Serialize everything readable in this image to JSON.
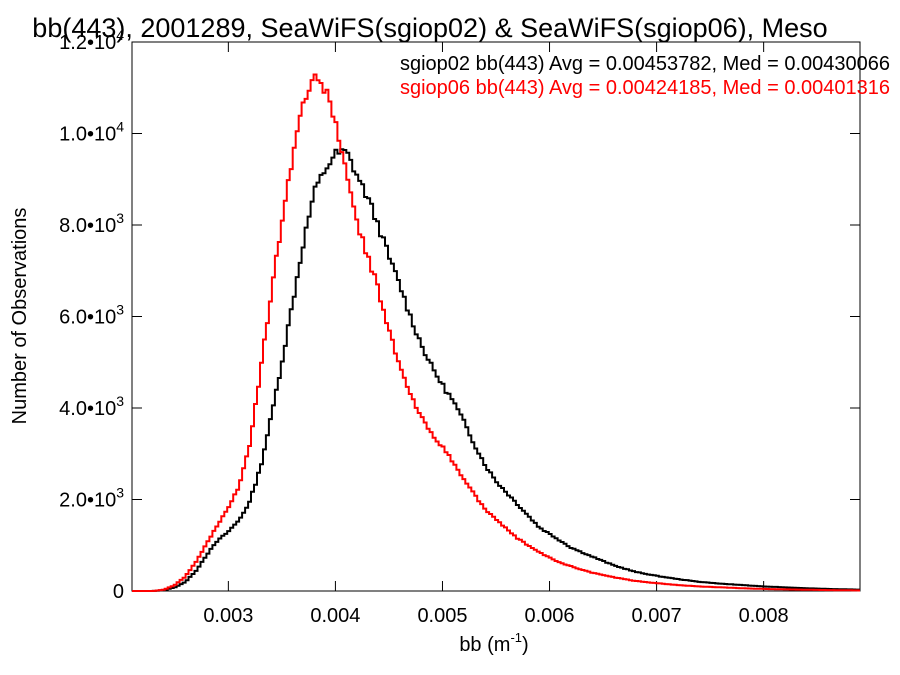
{
  "chart_data": {
    "type": "line",
    "title": "bb(443), 2001289, SeaWiFS(sgiop02) & SeaWiFS(sgiop06), Meso",
    "xlabel": "bb (m",
    "xlabel_sup": "-1",
    "xlabel_close": ")",
    "ylabel": "Number of Observations",
    "xlim": [
      0.0021,
      0.0089
    ],
    "ylim": [
      0,
      12000
    ],
    "x_ticks": [
      {
        "value": 0.003,
        "label": "0.003"
      },
      {
        "value": 0.004,
        "label": "0.004"
      },
      {
        "value": 0.005,
        "label": "0.005"
      },
      {
        "value": 0.006,
        "label": "0.006"
      },
      {
        "value": 0.007,
        "label": "0.007"
      },
      {
        "value": 0.008,
        "label": "0.008"
      }
    ],
    "y_ticks": [
      {
        "value": 0,
        "mant": "0",
        "exp": ""
      },
      {
        "value": 2000,
        "mant": "2.0•10",
        "exp": "3"
      },
      {
        "value": 4000,
        "mant": "4.0•10",
        "exp": "3"
      },
      {
        "value": 6000,
        "mant": "6.0•10",
        "exp": "3"
      },
      {
        "value": 8000,
        "mant": "8.0•10",
        "exp": "3"
      },
      {
        "value": 10000,
        "mant": "1.0•10",
        "exp": "4"
      },
      {
        "value": 12000,
        "mant": "1.2•10",
        "exp": "4"
      }
    ],
    "grid": false,
    "legend_position": "top-right",
    "series": [
      {
        "name": "sgiop02 bb(443) Avg = 0.00453782, Med = 0.00430066",
        "color": "#000000",
        "points": [
          [
            0.0021,
            0
          ],
          [
            0.0023,
            0
          ],
          [
            0.0024,
            20
          ],
          [
            0.0025,
            80
          ],
          [
            0.0026,
            200
          ],
          [
            0.0027,
            450
          ],
          [
            0.0028,
            800
          ],
          [
            0.0029,
            1100
          ],
          [
            0.003,
            1300
          ],
          [
            0.0031,
            1550
          ],
          [
            0.0032,
            1950
          ],
          [
            0.0033,
            2700
          ],
          [
            0.0034,
            3800
          ],
          [
            0.0035,
            5000
          ],
          [
            0.0036,
            6300
          ],
          [
            0.0037,
            7600
          ],
          [
            0.0038,
            8700
          ],
          [
            0.0039,
            9200
          ],
          [
            0.004,
            9550
          ],
          [
            0.0041,
            9600
          ],
          [
            0.0042,
            9100
          ],
          [
            0.0043,
            8600
          ],
          [
            0.0044,
            8000
          ],
          [
            0.0045,
            7300
          ],
          [
            0.0046,
            6700
          ],
          [
            0.0047,
            6000
          ],
          [
            0.0048,
            5400
          ],
          [
            0.0049,
            4900
          ],
          [
            0.005,
            4500
          ],
          [
            0.0051,
            4150
          ],
          [
            0.0052,
            3700
          ],
          [
            0.0053,
            3200
          ],
          [
            0.0054,
            2750
          ],
          [
            0.0055,
            2400
          ],
          [
            0.0056,
            2150
          ],
          [
            0.0057,
            1900
          ],
          [
            0.0058,
            1650
          ],
          [
            0.0059,
            1400
          ],
          [
            0.006,
            1250
          ],
          [
            0.0061,
            1100
          ],
          [
            0.0062,
            950
          ],
          [
            0.0064,
            750
          ],
          [
            0.0066,
            560
          ],
          [
            0.0068,
            420
          ],
          [
            0.007,
            330
          ],
          [
            0.0072,
            260
          ],
          [
            0.0074,
            200
          ],
          [
            0.0076,
            160
          ],
          [
            0.0078,
            130
          ],
          [
            0.008,
            100
          ],
          [
            0.0082,
            80
          ],
          [
            0.0084,
            60
          ],
          [
            0.0086,
            45
          ],
          [
            0.0088,
            35
          ],
          [
            0.0089,
            30
          ]
        ]
      },
      {
        "name": "sgiop06 bb(443) Avg = 0.00424185, Med = 0.00401316",
        "color": "#ff0000",
        "points": [
          [
            0.0021,
            0
          ],
          [
            0.0023,
            0
          ],
          [
            0.0024,
            30
          ],
          [
            0.0025,
            130
          ],
          [
            0.0026,
            320
          ],
          [
            0.0027,
            650
          ],
          [
            0.0028,
            1050
          ],
          [
            0.0029,
            1450
          ],
          [
            0.003,
            1800
          ],
          [
            0.0031,
            2300
          ],
          [
            0.0032,
            3200
          ],
          [
            0.0033,
            4800
          ],
          [
            0.0034,
            6500
          ],
          [
            0.0035,
            8100
          ],
          [
            0.0036,
            9500
          ],
          [
            0.0037,
            10700
          ],
          [
            0.0038,
            11200
          ],
          [
            0.0039,
            11000
          ],
          [
            0.004,
            10300
          ],
          [
            0.0041,
            9100
          ],
          [
            0.0042,
            8100
          ],
          [
            0.0043,
            7300
          ],
          [
            0.0044,
            6600
          ],
          [
            0.0045,
            5700
          ],
          [
            0.0046,
            4900
          ],
          [
            0.0047,
            4300
          ],
          [
            0.0048,
            3800
          ],
          [
            0.0049,
            3450
          ],
          [
            0.005,
            3150
          ],
          [
            0.0051,
            2800
          ],
          [
            0.0052,
            2450
          ],
          [
            0.0053,
            2100
          ],
          [
            0.0054,
            1800
          ],
          [
            0.0055,
            1550
          ],
          [
            0.0056,
            1350
          ],
          [
            0.0057,
            1150
          ],
          [
            0.0058,
            1000
          ],
          [
            0.0059,
            850
          ],
          [
            0.006,
            730
          ],
          [
            0.0061,
            620
          ],
          [
            0.0062,
            540
          ],
          [
            0.0064,
            400
          ],
          [
            0.0066,
            300
          ],
          [
            0.0068,
            220
          ],
          [
            0.007,
            170
          ],
          [
            0.0072,
            130
          ],
          [
            0.0074,
            100
          ],
          [
            0.0076,
            80
          ],
          [
            0.0078,
            60
          ],
          [
            0.008,
            45
          ],
          [
            0.0082,
            35
          ],
          [
            0.0084,
            28
          ],
          [
            0.0086,
            20
          ],
          [
            0.0088,
            15
          ],
          [
            0.0089,
            12
          ]
        ]
      }
    ]
  }
}
